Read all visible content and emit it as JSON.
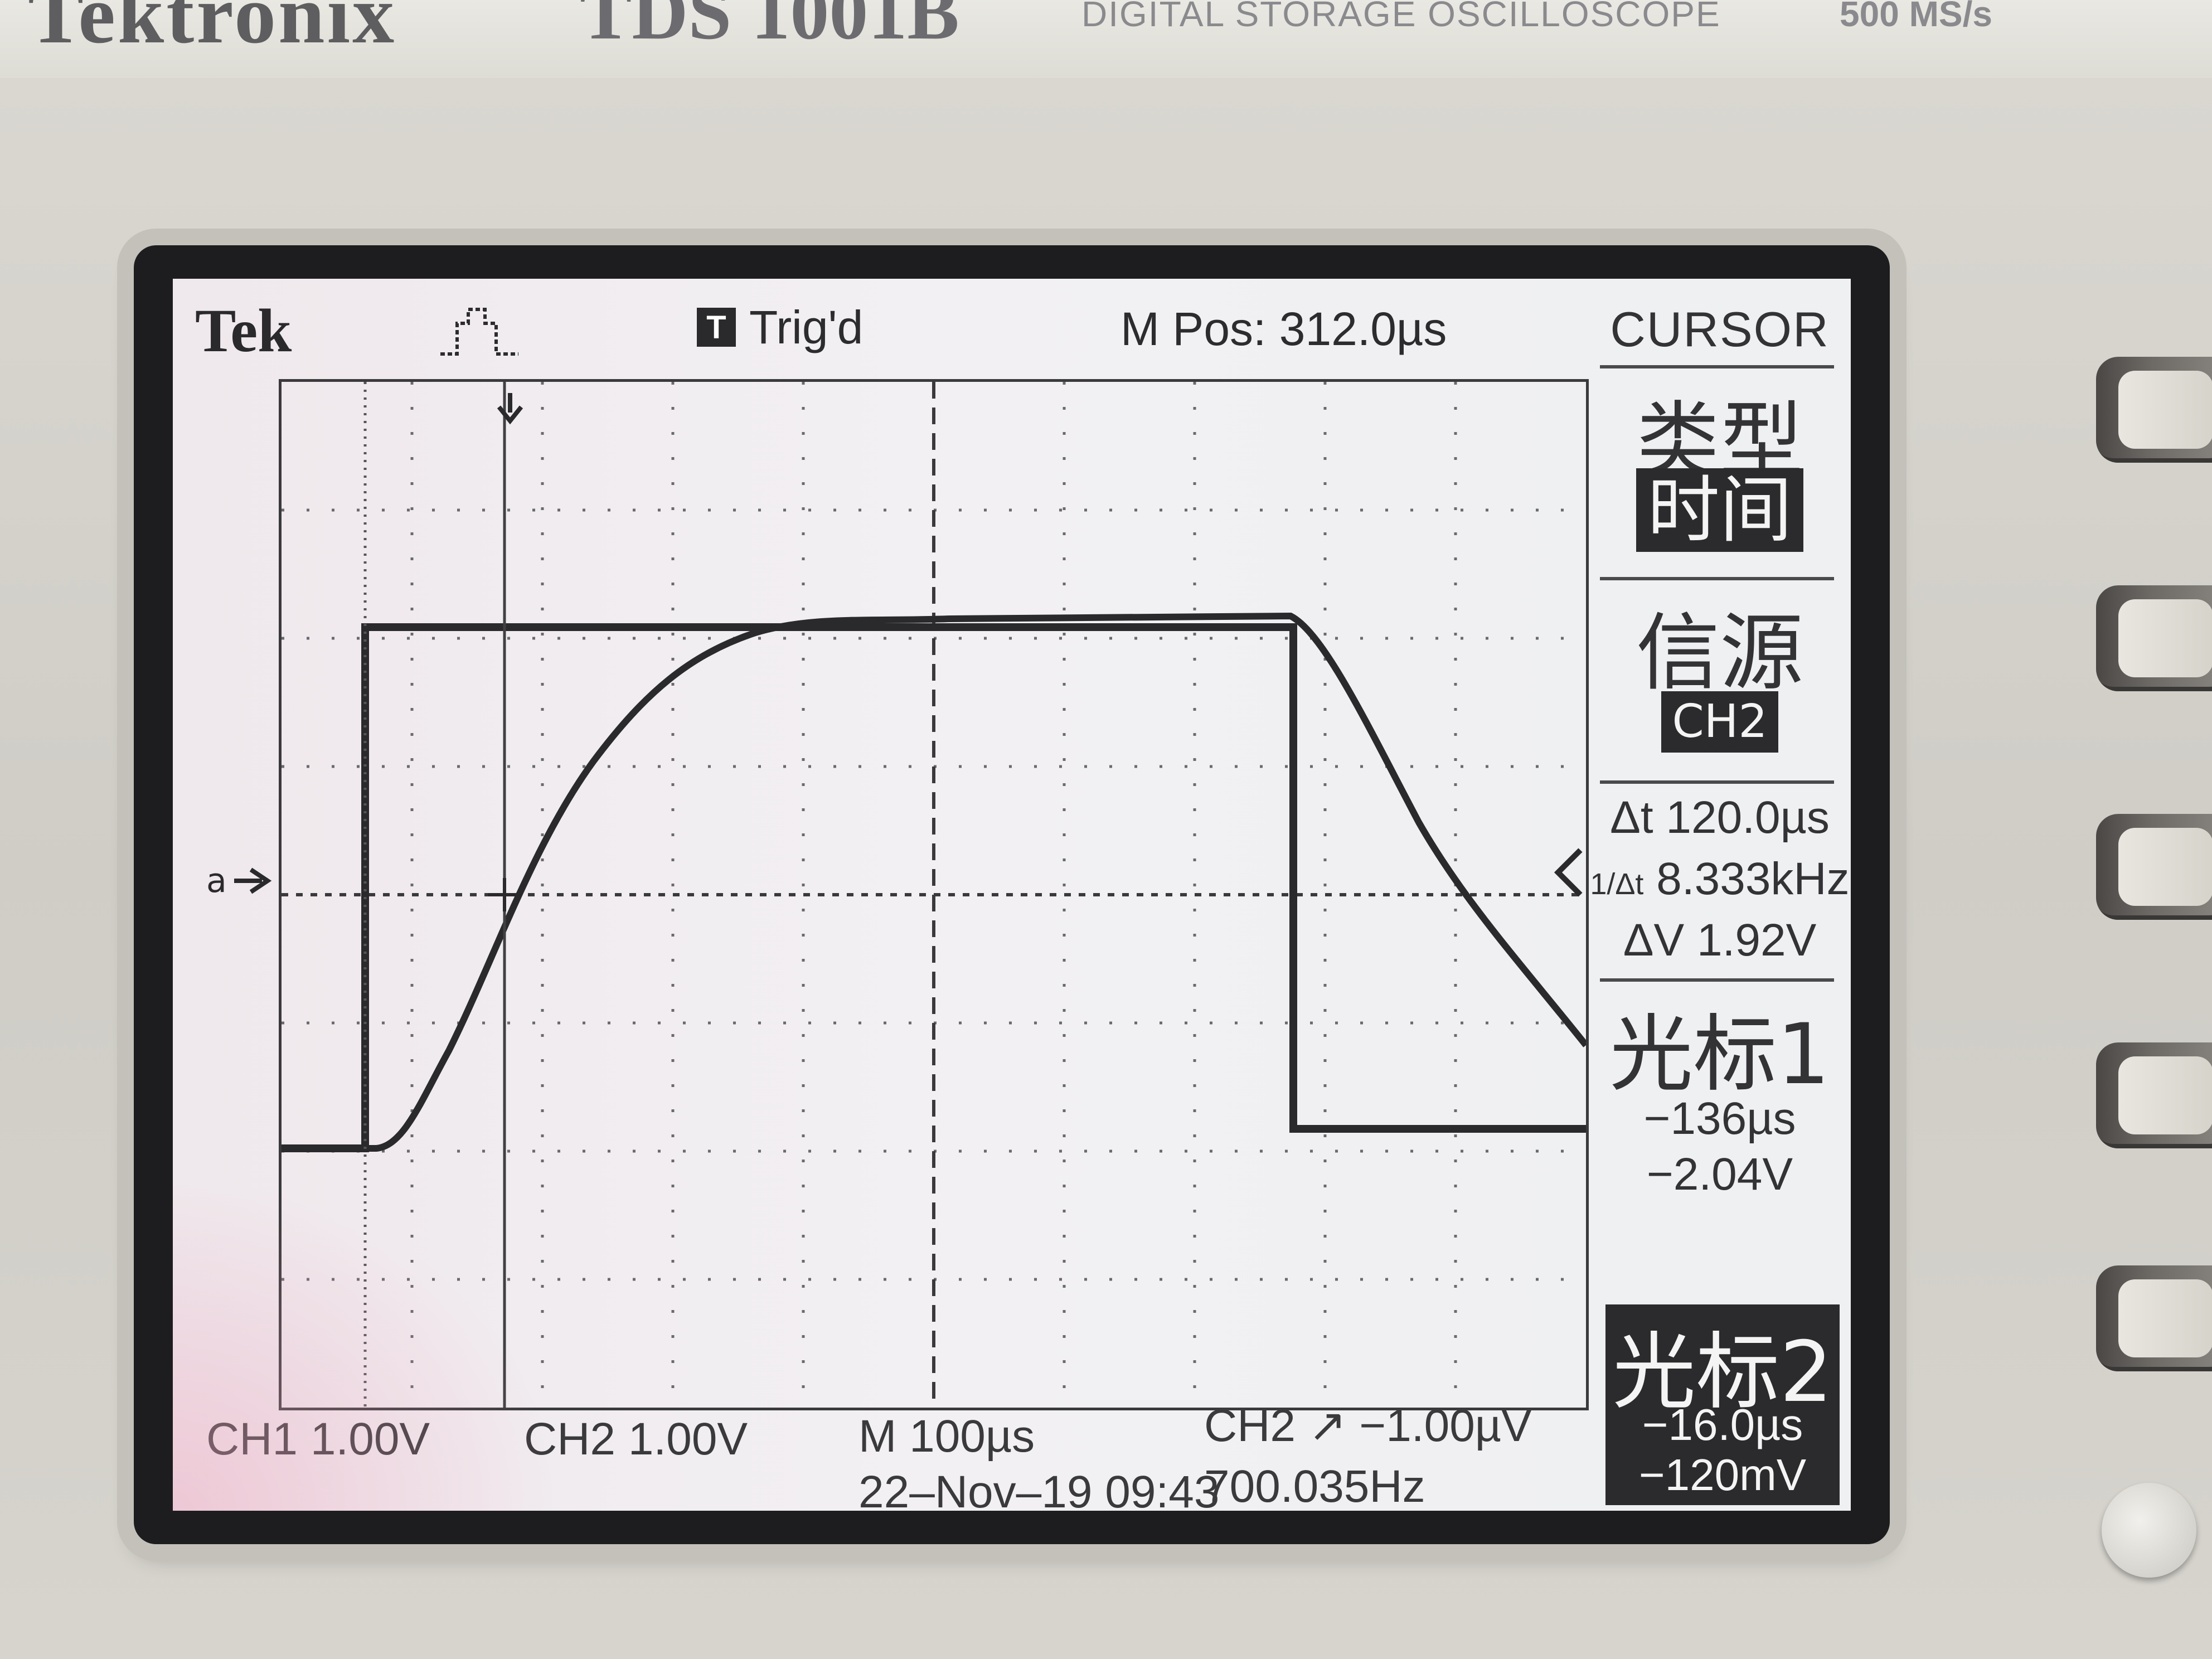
{
  "instrument": {
    "brand": "Tektronix",
    "model": "TDS 1001B",
    "description": "DIGITAL STORAGE OSCILLOSCOPE",
    "sample_rate": "500 MS/s"
  },
  "status_bar": {
    "logo": "Tek",
    "trigger_mode_letter": "T",
    "trigger_status": "Trig'd",
    "main_position": "M Pos: 312.0µs"
  },
  "menu": {
    "title": "CURSOR",
    "type_label": "类型",
    "type_value": "时间",
    "source_label": "信源",
    "source_value": "CH2",
    "delta_t": "Δt 120.0µs",
    "inv_delta_t_symbol": "1/Δt",
    "inv_delta_t": "8.333kHz",
    "delta_v": "ΔV 1.92V",
    "cursor1_label": "光标1",
    "cursor1_time": "−136µs",
    "cursor1_volt": "−2.04V",
    "cursor2_label": "光标2",
    "cursor2_time": "−16.0µs",
    "cursor2_volt": "−120mV"
  },
  "bottom_bar": {
    "ch1": "CH1  1.00V",
    "ch2": "CH2  1.00V",
    "timebase": "M 100µs",
    "trigger": "CH2 ↗ −1.00µV",
    "datetime": "22–Nov–19 09:43",
    "frequency": "700.035Hz"
  },
  "colors": {
    "trace": "#2a2a2c",
    "screen_bg": "#f0eef1",
    "menu_inverse_bg": "#2b2b2d"
  }
}
